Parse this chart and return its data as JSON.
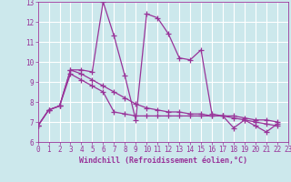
{
  "xlabel": "Windchill (Refroidissement éolien,°C)",
  "bg_color": "#cce8ec",
  "line_color": "#993399",
  "grid_color": "#ffffff",
  "xmin": 0,
  "xmax": 23,
  "ymin": 6,
  "ymax": 13,
  "line1_y": [
    6.8,
    7.6,
    7.8,
    9.6,
    9.6,
    9.5,
    13.0,
    11.3,
    9.3,
    7.1,
    12.4,
    12.2,
    11.4,
    10.2,
    10.1,
    10.6,
    7.4,
    7.3,
    6.7,
    7.1,
    6.8,
    6.5,
    6.9
  ],
  "line2_y": [
    6.8,
    7.6,
    7.8,
    9.6,
    9.4,
    9.1,
    8.8,
    8.5,
    8.2,
    7.9,
    7.7,
    7.6,
    7.5,
    7.5,
    7.4,
    7.4,
    7.3,
    7.3,
    7.3,
    7.2,
    7.1,
    7.1,
    7.0
  ],
  "line3_y": [
    6.8,
    7.6,
    7.8,
    9.4,
    9.1,
    8.8,
    8.5,
    7.5,
    7.4,
    7.3,
    7.3,
    7.3,
    7.3,
    7.3,
    7.3,
    7.3,
    7.3,
    7.3,
    7.2,
    7.1,
    7.0,
    6.9,
    6.8
  ]
}
